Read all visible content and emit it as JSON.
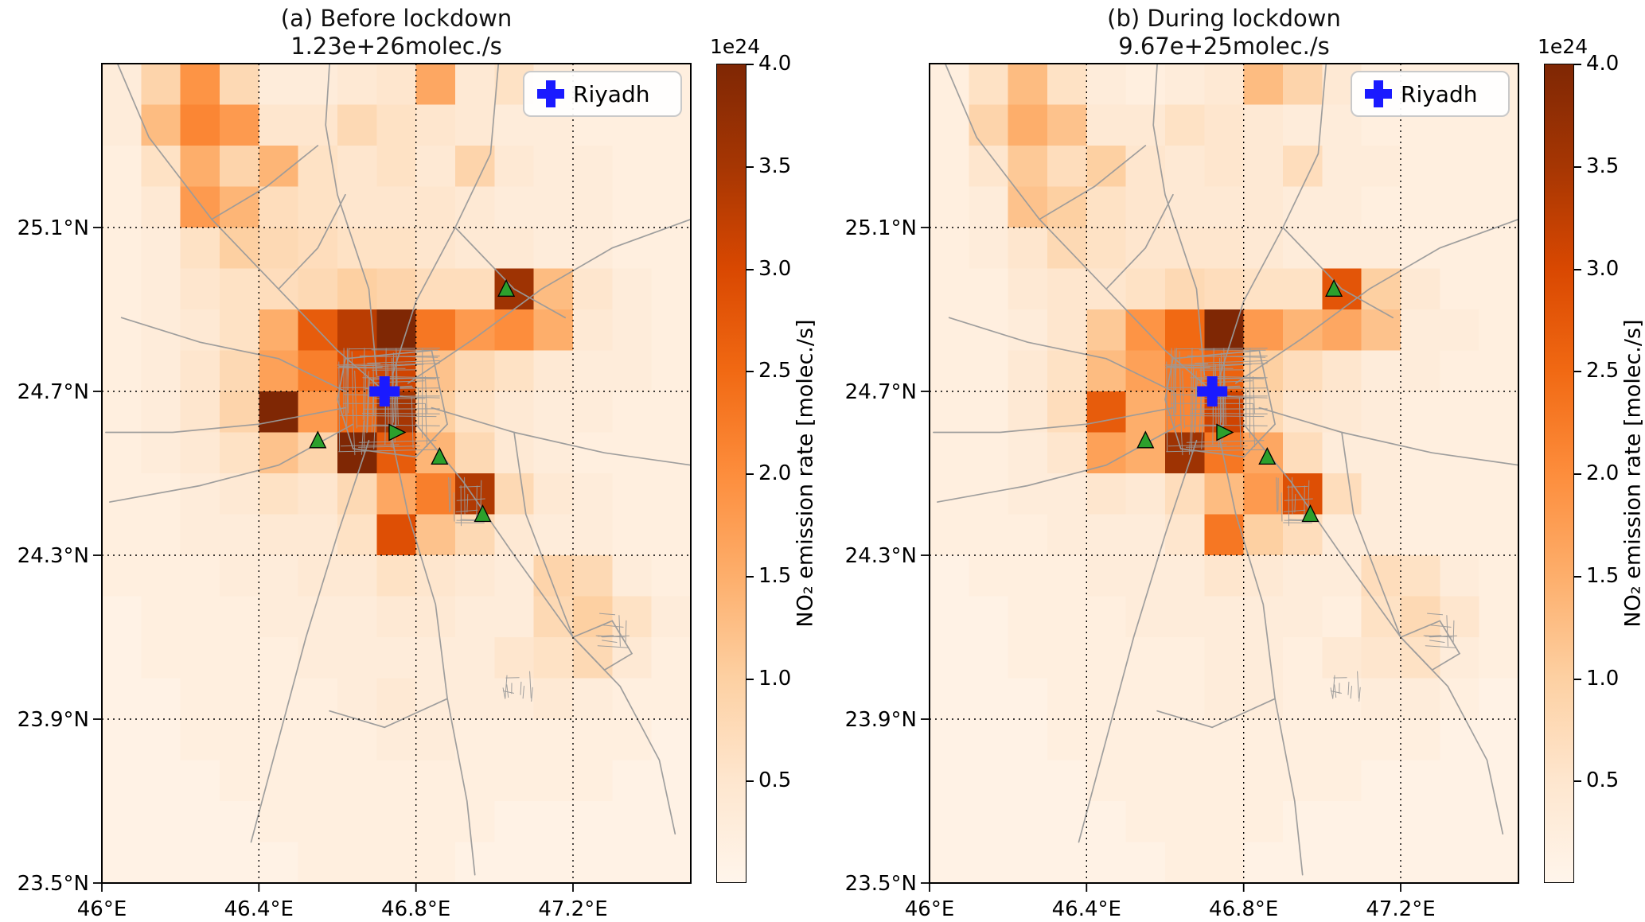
{
  "figure": {
    "background_color": "#ffffff",
    "description": "Two-panel gridded heatmap of NO2 emission rates over Riyadh, before and during lockdown"
  },
  "panels": [
    {
      "title_line1": "(a) Before lockdown",
      "title_line2": "1.23e+26molec./s",
      "legend_label": "Riyadh"
    },
    {
      "title_line1": "(b) During lockdown",
      "title_line2": "9.67e+25molec./s",
      "legend_label": "Riyadh"
    }
  ],
  "axes": {
    "x_ticks": [
      {
        "lon": 46.0,
        "label": "46°E"
      },
      {
        "lon": 46.4,
        "label": "46.4°E"
      },
      {
        "lon": 46.8,
        "label": "46.8°E"
      },
      {
        "lon": 47.2,
        "label": "47.2°E"
      }
    ],
    "y_ticks": [
      {
        "lat": 25.1,
        "label": "25.1°N"
      },
      {
        "lat": 24.7,
        "label": "24.7°N"
      },
      {
        "lat": 24.3,
        "label": "24.3°N"
      },
      {
        "lat": 23.9,
        "label": "23.9°N"
      },
      {
        "lat": 23.5,
        "label": "23.5°N"
      }
    ],
    "lon_range": [
      46.0,
      47.5
    ],
    "lat_range": [
      23.5,
      25.5
    ],
    "grid_style": "dotted"
  },
  "colorbar": {
    "offset_label": "1e24",
    "axis_label": "NO₂ emission rate [molec./s]",
    "tick_labels": [
      "0.5",
      "1.0",
      "1.5",
      "2.0",
      "2.5",
      "3.0",
      "3.5",
      "4.0"
    ],
    "tick_values": [
      0.5,
      1.0,
      1.5,
      2.0,
      2.5,
      3.0,
      3.5,
      4.0
    ],
    "vmin": 0,
    "vmax": 4,
    "colormap_name": "Oranges",
    "colormap_stops": [
      "#fff5eb",
      "#fee6ce",
      "#fdd0a2",
      "#fdae6b",
      "#fd8d3c",
      "#f16913",
      "#d94801",
      "#a63603",
      "#7f2704"
    ]
  },
  "markers": {
    "city": {
      "name": "Riyadh",
      "lon": 46.72,
      "lat": 24.7,
      "color": "#1a1aff",
      "shape": "plus"
    },
    "stations_color": "#2ca02c",
    "stations": [
      {
        "lon": 47.03,
        "lat": 24.95,
        "shape": "triangle-up"
      },
      {
        "lon": 46.55,
        "lat": 24.58,
        "shape": "triangle-up"
      },
      {
        "lon": 46.75,
        "lat": 24.6,
        "shape": "triangle-right"
      },
      {
        "lon": 46.86,
        "lat": 24.54,
        "shape": "triangle-up"
      },
      {
        "lon": 46.97,
        "lat": 24.4,
        "shape": "triangle-up"
      }
    ],
    "road_color": "#9a9a9a"
  },
  "chart_data": [
    {
      "type": "heatmap",
      "title": "(a) Before lockdown",
      "subtitle": "1.23e+26molec./s",
      "total_emission": "1.23e+26 molec./s",
      "units": "1e24 molec./s per cell",
      "colormap": "Oranges",
      "vmin": 0,
      "vmax": 4,
      "lon_range": [
        46.0,
        47.5
      ],
      "lat_range": [
        23.5,
        25.5
      ],
      "cell_size_deg": 0.1,
      "ncols": 15,
      "nrows": 20,
      "values_rows_top_to_bottom": [
        [
          0.3,
          0.9,
          1.9,
          0.8,
          0.3,
          0.3,
          0.4,
          0.5,
          1.6,
          0.4,
          0.6,
          0.3,
          0.2,
          0.2,
          0.2
        ],
        [
          0.3,
          1.3,
          2.1,
          1.8,
          0.5,
          0.5,
          0.8,
          0.6,
          0.5,
          0.4,
          0.3,
          0.3,
          0.2,
          0.2,
          0.2
        ],
        [
          0.2,
          0.6,
          1.5,
          0.9,
          1.4,
          0.6,
          0.5,
          0.6,
          0.4,
          0.9,
          0.4,
          0.3,
          0.3,
          0.2,
          0.2
        ],
        [
          0.2,
          0.4,
          1.8,
          1.4,
          0.7,
          0.6,
          0.5,
          0.5,
          0.5,
          0.4,
          0.3,
          0.3,
          0.3,
          0.2,
          0.2
        ],
        [
          0.2,
          0.3,
          0.6,
          1.0,
          0.8,
          0.7,
          0.6,
          0.6,
          0.5,
          0.4,
          0.4,
          0.3,
          0.3,
          0.2,
          0.2
        ],
        [
          0.2,
          0.3,
          0.5,
          0.6,
          0.7,
          0.8,
          1.0,
          0.9,
          0.7,
          0.7,
          3.6,
          1.3,
          0.5,
          0.3,
          0.2
        ],
        [
          0.2,
          0.3,
          0.4,
          0.6,
          1.5,
          2.7,
          3.3,
          4.4,
          2.3,
          1.8,
          2.0,
          1.5,
          0.4,
          0.3,
          0.2
        ],
        [
          0.2,
          0.3,
          0.5,
          0.8,
          1.7,
          2.2,
          2.9,
          3.1,
          1.2,
          0.8,
          0.6,
          0.4,
          0.3,
          0.3,
          0.2
        ],
        [
          0.2,
          0.3,
          0.5,
          0.9,
          4.3,
          1.8,
          2.5,
          3.5,
          1.0,
          0.6,
          0.4,
          0.3,
          0.3,
          0.2,
          0.2
        ],
        [
          0.2,
          0.3,
          0.4,
          0.6,
          1.2,
          0.9,
          4.0,
          2.7,
          1.4,
          0.8,
          0.4,
          0.3,
          0.2,
          0.2,
          0.2
        ],
        [
          0.2,
          0.2,
          0.3,
          0.4,
          0.6,
          0.5,
          0.8,
          1.6,
          2.2,
          3.4,
          0.8,
          0.4,
          0.3,
          0.2,
          0.2
        ],
        [
          0.2,
          0.2,
          0.3,
          0.3,
          0.4,
          0.4,
          0.6,
          2.9,
          1.2,
          0.8,
          0.4,
          0.3,
          0.3,
          0.2,
          0.2
        ],
        [
          0.2,
          0.2,
          0.2,
          0.3,
          0.3,
          0.4,
          0.4,
          0.6,
          0.5,
          0.4,
          0.3,
          0.9,
          0.8,
          0.3,
          0.2
        ],
        [
          0.1,
          0.2,
          0.2,
          0.2,
          0.3,
          0.3,
          0.3,
          0.4,
          0.4,
          0.3,
          0.3,
          0.8,
          1.0,
          0.6,
          0.3
        ],
        [
          0.1,
          0.2,
          0.2,
          0.2,
          0.2,
          0.3,
          0.3,
          0.3,
          0.3,
          0.3,
          0.5,
          0.6,
          0.8,
          0.4,
          0.2
        ],
        [
          0.1,
          0.1,
          0.2,
          0.2,
          0.2,
          0.2,
          0.3,
          0.4,
          0.3,
          0.3,
          0.3,
          0.4,
          0.3,
          0.2,
          0.2
        ],
        [
          0.1,
          0.1,
          0.2,
          0.2,
          0.2,
          0.2,
          0.2,
          0.3,
          0.3,
          0.2,
          0.2,
          0.2,
          0.2,
          0.2,
          0.1
        ],
        [
          0.1,
          0.1,
          0.1,
          0.2,
          0.2,
          0.2,
          0.2,
          0.2,
          0.2,
          0.2,
          0.2,
          0.2,
          0.2,
          0.1,
          0.1
        ],
        [
          0.1,
          0.1,
          0.1,
          0.1,
          0.2,
          0.2,
          0.2,
          0.2,
          0.2,
          0.2,
          0.1,
          0.1,
          0.1,
          0.1,
          0.1
        ],
        [
          0.1,
          0.1,
          0.1,
          0.1,
          0.1,
          0.2,
          0.2,
          0.2,
          0.2,
          0.1,
          0.1,
          0.1,
          0.1,
          0.1,
          0.1
        ]
      ]
    },
    {
      "type": "heatmap",
      "title": "(b) During lockdown",
      "subtitle": "9.67e+25molec./s",
      "total_emission": "9.67e+25 molec./s",
      "units": "1e24 molec./s per cell",
      "colormap": "Oranges",
      "vmin": 0,
      "vmax": 4,
      "lon_range": [
        46.0,
        47.5
      ],
      "lat_range": [
        23.5,
        25.5
      ],
      "cell_size_deg": 0.1,
      "ncols": 15,
      "nrows": 20,
      "values_rows_top_to_bottom": [
        [
          0.2,
          0.6,
          1.3,
          0.6,
          0.3,
          0.2,
          0.3,
          0.4,
          1.3,
          0.9,
          0.4,
          0.2,
          0.2,
          0.2,
          0.2
        ],
        [
          0.2,
          0.9,
          1.5,
          1.2,
          0.4,
          0.4,
          0.6,
          0.5,
          0.4,
          0.3,
          0.3,
          0.2,
          0.2,
          0.2,
          0.2
        ],
        [
          0.2,
          0.5,
          1.1,
          0.7,
          1.0,
          0.5,
          0.4,
          0.5,
          0.4,
          0.7,
          0.3,
          0.3,
          0.2,
          0.2,
          0.2
        ],
        [
          0.2,
          0.3,
          1.2,
          1.0,
          0.6,
          0.5,
          0.4,
          0.4,
          0.4,
          0.3,
          0.3,
          0.2,
          0.2,
          0.2,
          0.2
        ],
        [
          0.2,
          0.3,
          0.5,
          0.8,
          0.6,
          0.5,
          0.5,
          0.5,
          0.4,
          0.3,
          0.3,
          0.3,
          0.2,
          0.2,
          0.2
        ],
        [
          0.2,
          0.2,
          0.4,
          0.5,
          0.5,
          0.6,
          0.8,
          0.7,
          0.6,
          0.6,
          2.8,
          1.0,
          0.4,
          0.2,
          0.2
        ],
        [
          0.2,
          0.2,
          0.3,
          0.5,
          1.1,
          1.9,
          2.5,
          4.2,
          1.8,
          1.4,
          1.6,
          1.2,
          0.3,
          0.3,
          0.2
        ],
        [
          0.2,
          0.2,
          0.4,
          0.6,
          1.3,
          1.7,
          2.3,
          2.6,
          1.0,
          0.7,
          0.5,
          0.3,
          0.3,
          0.2,
          0.2
        ],
        [
          0.2,
          0.2,
          0.4,
          0.7,
          2.7,
          1.5,
          2.1,
          3.1,
          0.8,
          0.5,
          0.4,
          0.3,
          0.2,
          0.2,
          0.2
        ],
        [
          0.2,
          0.2,
          0.3,
          0.5,
          1.7,
          1.5,
          3.6,
          2.3,
          1.6,
          0.7,
          0.3,
          0.3,
          0.2,
          0.2,
          0.2
        ],
        [
          0.2,
          0.2,
          0.3,
          0.3,
          0.5,
          0.4,
          0.7,
          1.3,
          1.8,
          2.9,
          0.7,
          0.3,
          0.2,
          0.2,
          0.2
        ],
        [
          0.2,
          0.2,
          0.2,
          0.3,
          0.3,
          0.3,
          0.5,
          2.3,
          1.0,
          0.7,
          0.3,
          0.3,
          0.2,
          0.2,
          0.2
        ],
        [
          0.1,
          0.2,
          0.2,
          0.2,
          0.3,
          0.3,
          0.3,
          0.5,
          0.4,
          0.3,
          0.3,
          0.7,
          0.6,
          0.3,
          0.2
        ],
        [
          0.1,
          0.1,
          0.2,
          0.2,
          0.2,
          0.3,
          0.3,
          0.3,
          0.3,
          0.3,
          0.2,
          0.6,
          0.8,
          0.5,
          0.2
        ],
        [
          0.1,
          0.1,
          0.2,
          0.2,
          0.2,
          0.2,
          0.2,
          0.3,
          0.3,
          0.2,
          0.4,
          0.5,
          0.6,
          0.3,
          0.2
        ],
        [
          0.1,
          0.1,
          0.1,
          0.2,
          0.2,
          0.2,
          0.2,
          0.3,
          0.3,
          0.2,
          0.2,
          0.3,
          0.3,
          0.2,
          0.1
        ],
        [
          0.1,
          0.1,
          0.1,
          0.2,
          0.2,
          0.2,
          0.2,
          0.2,
          0.2,
          0.2,
          0.2,
          0.2,
          0.2,
          0.1,
          0.1
        ],
        [
          0.1,
          0.1,
          0.1,
          0.1,
          0.2,
          0.2,
          0.2,
          0.2,
          0.2,
          0.2,
          0.2,
          0.1,
          0.1,
          0.1,
          0.1
        ],
        [
          0.1,
          0.1,
          0.1,
          0.1,
          0.1,
          0.2,
          0.2,
          0.2,
          0.2,
          0.1,
          0.1,
          0.1,
          0.1,
          0.1,
          0.1
        ],
        [
          0.1,
          0.1,
          0.1,
          0.1,
          0.1,
          0.1,
          0.2,
          0.2,
          0.1,
          0.1,
          0.1,
          0.1,
          0.1,
          0.1,
          0.1
        ]
      ]
    }
  ]
}
